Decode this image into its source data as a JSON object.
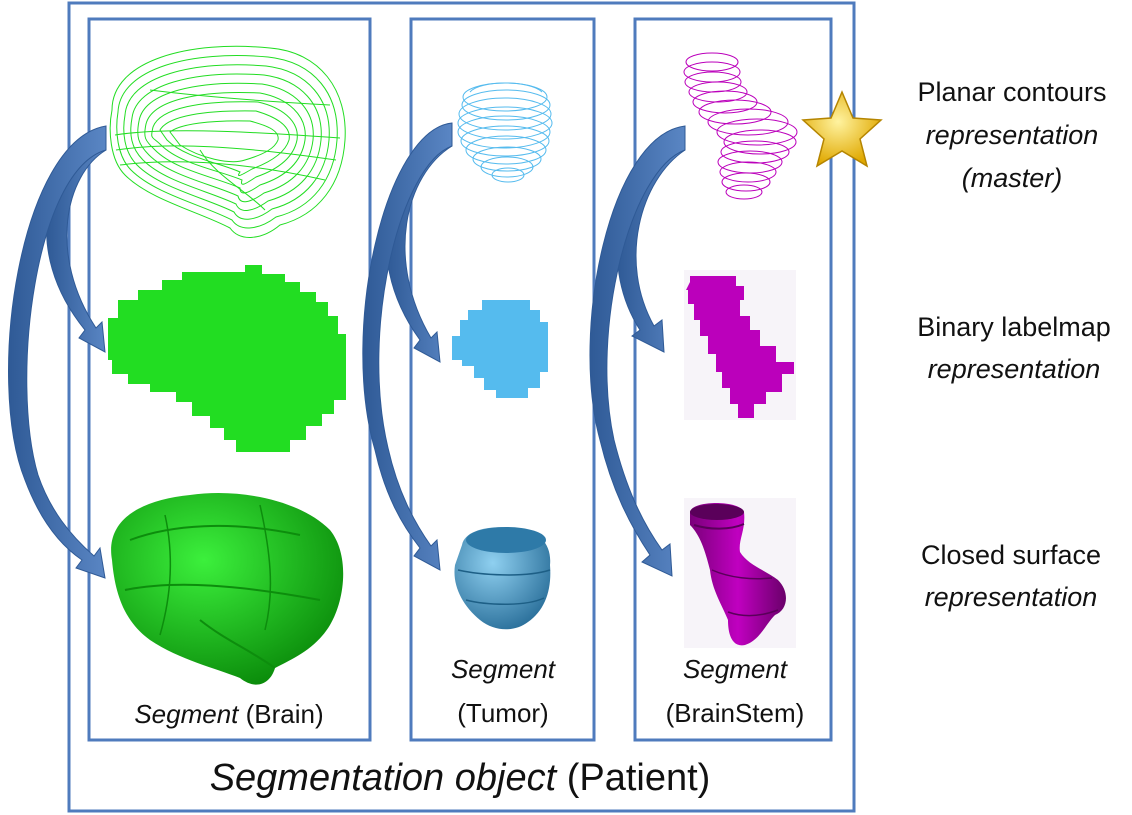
{
  "container": {
    "label_italic": "Segmentation object",
    "label_plain": " (Patient)"
  },
  "segments": [
    {
      "italic": "Segment",
      "name": " (Brain)",
      "color": "#22dd22"
    },
    {
      "italic": "Segment",
      "name": "(Tumor)",
      "color": "#55bbee"
    },
    {
      "italic": "Segment",
      "name": "(BrainStem)",
      "color": "#bb00bb"
    }
  ],
  "representations": [
    {
      "line1": "Planar contours",
      "line2": "representation",
      "line3": "(master)"
    },
    {
      "line1": "Binary labelmap",
      "line2": "representation"
    },
    {
      "line1": "Closed surface",
      "line2": "representation"
    }
  ],
  "colors": {
    "frame": "#4f7bbd",
    "arrow": "#3e6aa8",
    "brain": "#22dd22",
    "tumor": "#55bbee",
    "brainstem": "#bb00bb",
    "star": "#f5c400"
  },
  "icons": [
    "star-icon"
  ]
}
